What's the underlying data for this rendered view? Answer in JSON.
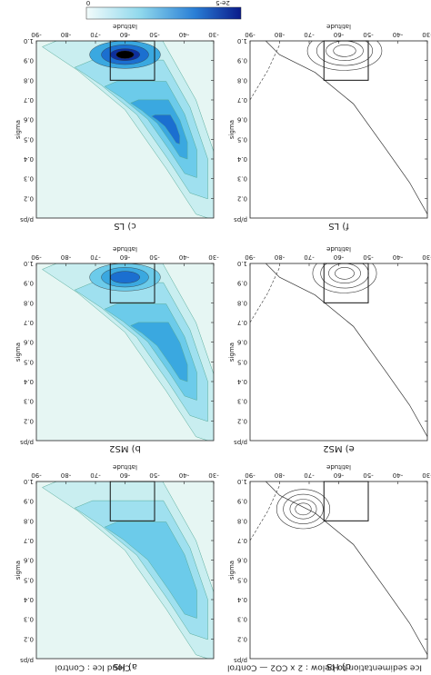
{
  "header": {
    "left_title": "Ice sedimentation to below : 2 x CO2 — Control",
    "right_title": "Cloud Ice : Control"
  },
  "colorbar": {
    "min_label": "0",
    "max_label": "2e-5"
  },
  "axes": {
    "xlabel": "latitude",
    "ylabel": "sigma",
    "yunit": "p/ps",
    "xlim": [
      -90,
      -30
    ],
    "xticks": [
      -90,
      -80,
      -70,
      -60,
      -50,
      -40,
      -30
    ],
    "ylim": [
      0.1,
      1
    ],
    "yticks": [
      0.2,
      0.3,
      0.4,
      0.5,
      0.6,
      0.7,
      0.8,
      0.9,
      {
        "value": 1,
        "label": "1.0"
      }
    ]
  },
  "panels": [
    {
      "label": "a) HS",
      "kind": "fill"
    },
    {
      "label": "b) MS2",
      "kind": "fill"
    },
    {
      "label": "c) LS",
      "kind": "fill"
    },
    {
      "label": "d) HS",
      "kind": "contour"
    },
    {
      "label": "e) MS2",
      "kind": "contour"
    },
    {
      "label": "f) LS",
      "kind": "contour"
    }
  ]
}
